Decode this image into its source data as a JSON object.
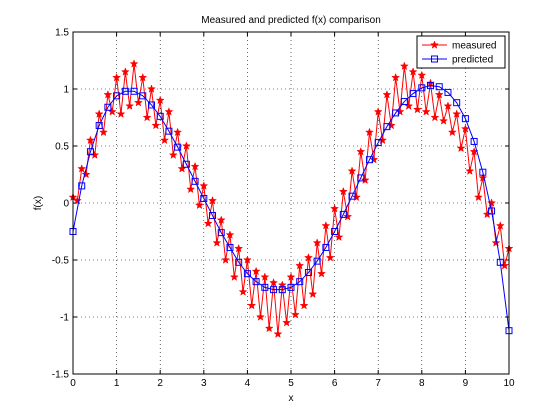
{
  "chart_data": {
    "type": "line",
    "title": "Measured and predicted f(x) comparison",
    "x_label": "x",
    "y_label": "f(x)",
    "xlim": [
      0,
      10
    ],
    "ylim": [
      -1.5,
      1.5
    ],
    "xticks": [
      0,
      1,
      2,
      3,
      4,
      5,
      6,
      7,
      8,
      9,
      10
    ],
    "yticks": [
      -1.5,
      -1,
      -0.5,
      0,
      0.5,
      1,
      1.5
    ],
    "grid": true,
    "legend_position": "upper right",
    "series": [
      {
        "name": "measured",
        "color": "#ff0000",
        "marker": "star",
        "x": [
          0,
          0.1,
          0.2,
          0.3,
          0.4,
          0.5,
          0.6,
          0.7,
          0.8,
          0.9,
          1,
          1.1,
          1.2,
          1.3,
          1.4,
          1.5,
          1.6,
          1.7,
          1.8,
          1.9,
          2,
          2.1,
          2.2,
          2.3,
          2.4,
          2.5,
          2.6,
          2.7,
          2.8,
          2.9,
          3,
          3.1,
          3.2,
          3.3,
          3.4,
          3.5,
          3.6,
          3.7,
          3.8,
          3.9,
          4,
          4.1,
          4.2,
          4.3,
          4.4,
          4.5,
          4.6,
          4.7,
          4.8,
          4.9,
          5,
          5.1,
          5.2,
          5.3,
          5.4,
          5.5,
          5.6,
          5.7,
          5.8,
          5.9,
          6,
          6.1,
          6.2,
          6.3,
          6.4,
          6.5,
          6.6,
          6.7,
          6.8,
          6.9,
          7,
          7.1,
          7.2,
          7.3,
          7.4,
          7.5,
          7.6,
          7.7,
          7.8,
          7.9,
          8,
          8.1,
          8.2,
          8.3,
          8.4,
          8.5,
          8.6,
          8.7,
          8.8,
          8.9,
          9,
          9.1,
          9.2,
          9.3,
          9.4,
          9.5,
          9.6,
          9.7,
          9.8,
          9.9,
          10
        ],
        "values": [
          0.05,
          0.02,
          0.3,
          0.25,
          0.55,
          0.42,
          0.78,
          0.62,
          0.95,
          0.8,
          1.1,
          0.78,
          1.15,
          0.85,
          1.22,
          0.88,
          1.1,
          0.75,
          1.0,
          0.68,
          0.9,
          0.55,
          0.8,
          0.42,
          0.62,
          0.3,
          0.5,
          0.12,
          0.32,
          -0.02,
          0.15,
          -0.18,
          0.02,
          -0.35,
          -0.15,
          -0.5,
          -0.28,
          -0.65,
          -0.4,
          -0.78,
          -0.5,
          -0.9,
          -0.6,
          -1.0,
          -0.65,
          -1.1,
          -0.7,
          -1.15,
          -0.72,
          -1.05,
          -0.65,
          -0.98,
          -0.55,
          -0.9,
          -0.48,
          -0.8,
          -0.35,
          -0.62,
          -0.2,
          -0.48,
          -0.05,
          -0.3,
          0.1,
          -0.12,
          0.28,
          0.05,
          0.45,
          0.2,
          0.62,
          0.38,
          0.8,
          0.55,
          0.95,
          0.68,
          1.1,
          0.8,
          1.2,
          0.85,
          1.15,
          0.82,
          1.12,
          0.8,
          1.05,
          0.75,
          0.95,
          0.72,
          0.85,
          0.62,
          0.78,
          0.48,
          0.65,
          0.28,
          0.45,
          0.05,
          0.22,
          -0.1,
          0.0,
          -0.35,
          -0.2,
          -0.55,
          -0.4
        ]
      },
      {
        "name": "predicted",
        "color": "#0000ff",
        "marker": "square",
        "x": [
          0,
          0.2,
          0.4,
          0.6,
          0.8,
          1,
          1.2,
          1.4,
          1.6,
          1.8,
          2,
          2.2,
          2.4,
          2.6,
          2.8,
          3,
          3.2,
          3.4,
          3.6,
          3.8,
          4,
          4.2,
          4.4,
          4.6,
          4.8,
          5,
          5.2,
          5.4,
          5.6,
          5.8,
          6,
          6.2,
          6.4,
          6.6,
          6.8,
          7,
          7.2,
          7.4,
          7.6,
          7.8,
          8,
          8.2,
          8.4,
          8.6,
          8.8,
          9,
          9.2,
          9.4,
          9.6,
          9.8,
          10
        ],
        "values": [
          -0.25,
          0.15,
          0.45,
          0.68,
          0.84,
          0.94,
          0.98,
          0.98,
          0.94,
          0.86,
          0.76,
          0.63,
          0.49,
          0.34,
          0.19,
          0.04,
          -0.11,
          -0.26,
          -0.39,
          -0.52,
          -0.62,
          -0.69,
          -0.74,
          -0.76,
          -0.76,
          -0.74,
          -0.69,
          -0.61,
          -0.51,
          -0.39,
          -0.25,
          -0.1,
          0.06,
          0.22,
          0.38,
          0.53,
          0.67,
          0.79,
          0.89,
          0.96,
          1.01,
          1.03,
          1.02,
          0.97,
          0.88,
          0.74,
          0.54,
          0.27,
          -0.07,
          -0.52,
          -1.12
        ]
      }
    ]
  }
}
